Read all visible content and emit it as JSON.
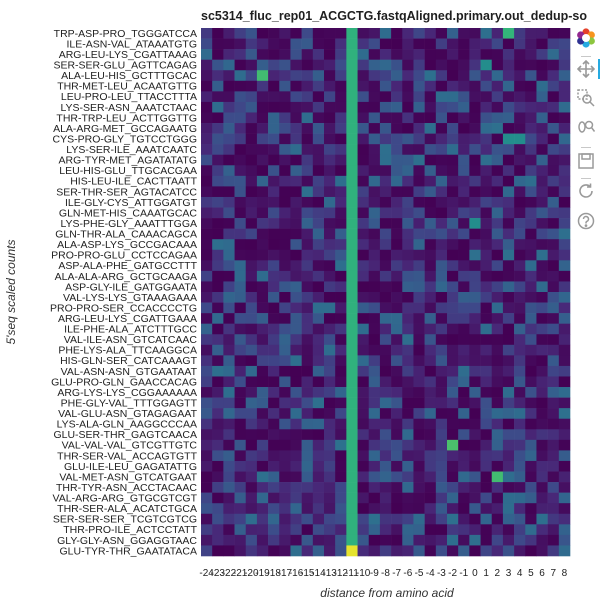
{
  "chart_data": {
    "type": "heatmap",
    "title": "sc5314_fluc_rep01_ACGCTG.fastqAligned.primary.out_dedup-so",
    "xlabel": "distance from amino acid",
    "ylabel": "5'seq scaled counts",
    "x_ticks": [
      "-24",
      "-23",
      "-22",
      "-21",
      "-20",
      "-19",
      "-18",
      "-17",
      "-16",
      "-15",
      "-14",
      "-13",
      "-12",
      "-11",
      "-10",
      "-9",
      "-8",
      "-7",
      "-6",
      "-5",
      "-4",
      "-3",
      "-2",
      "-1",
      "0",
      "1",
      "2",
      "3",
      "4",
      "5",
      "6",
      "7",
      "8"
    ],
    "rows": [
      "TRP-ASP-PRO_TGGGATCCA",
      "ILE-ASN-VAL_ATAAATGTG",
      "ARG-LEU-LYS_CGATTAAAG",
      "SER-SER-GLU_AGTTCAGAG",
      "ALA-LEU-HIS_GCTTTGCAC",
      "THR-MET-LEU_ACAATGTTG",
      "LEU-PRO-LEU_TTACCTTTA",
      "LYS-SER-ASN_AAATCTAAC",
      "THR-TRP-LEU_ACTTGGTTG",
      "ALA-ARG-MET_GCCAGAATG",
      "CYS-PRO-GLY_TGTCCTGGG",
      "LYS-SER-ILE_AAATCAATC",
      "ARG-TYR-MET_AGATATATG",
      "LEU-HIS-GLU_TTGCACGAA",
      "HIS-LEU-ILE_CACTTAATT",
      "SER-THR-SER_AGTACATCC",
      "ILE-GLY-CYS_ATTGGATGT",
      "GLN-MET-HIS_CAAATGCAC",
      "LYS-PHE-GLY_AAATTTGGA",
      "GLN-THR-ALA_CAAACAGCA",
      "ALA-ASP-LYS_GCCGACAAA",
      "PRO-PRO-GLU_CCTCCAGAA",
      "ASP-ALA-PHE_GATGCCTTT",
      "ALA-ALA-ARG_GCTGCAAGA",
      "ASP-GLY-ILE_GATGGAATA",
      "VAL-LYS-LYS_GTAAAGAAA",
      "PRO-PRO-SER_CCACCCCTG",
      "ARG-LEU-LYS_CGATTGAAA",
      "ILE-PHE-ALA_ATCTTTGCC",
      "VAL-ILE-ASN_GTCATCAAC",
      "PHE-LYS-ALA_TTCAAGGCA",
      "HIS-GLN-SER_CATCAAAGT",
      "VAL-ASN-ASN_GTGAATAAT",
      "GLU-PRO-GLN_GAACCACAG",
      "ARG-LYS-LYS_CGGAAAAAA",
      "PHE-GLY-VAL_TTTGGAGTT",
      "VAL-GLU-ASN_GTAGAGAAT",
      "LYS-ALA-GLN_AAGGCCCAA",
      "GLU-SER-THR_GAGTCAACA",
      "VAL-VAL-VAL_GTCGTTGTC",
      "THR-SER-VAL_ACCAGTGTT",
      "GLU-ILE-LEU_GAGATATTG",
      "VAL-MET-ASN_GTCATGAAT",
      "THR-TYR-ASN_ACCTACAAC",
      "VAL-ARG-ARG_GTGCGTCGT",
      "THR-SER-ALA_ACATCTGCA",
      "SER-SER-SER_TCGTCGTCG",
      "THR-PRO-ILE_ACTCCTATT",
      "GLY-GLY-ASN_GGAGGTAAC",
      "GLU-TYR-THR_GAATATACA"
    ],
    "hot_column_tick": "-11",
    "hot_column_values": {
      "default": 0.72,
      "last_row": 0.98
    },
    "highlights": [
      {
        "row": "TRP-ASP-PRO_TGGGATCCA",
        "x": "3",
        "value": 0.74
      },
      {
        "row": "ALA-LEU-HIS_GCTTTGCAC",
        "x": "-19",
        "value": 0.78
      },
      {
        "row": "CYS-PRO-GLY_TGTCCTGGG",
        "x": "3",
        "value": 0.55
      },
      {
        "row": "CYS-PRO-GLY_TGTCCTGGG",
        "x": "4",
        "value": 0.55
      },
      {
        "row": "LYS-PHE-GLY_AAATTTGGA",
        "x": "0",
        "value": 0.55
      },
      {
        "row": "VAL-VAL-VAL_GTCGTTGTC",
        "x": "-2",
        "value": 0.8
      },
      {
        "row": "VAL-MET-ASN_GTCATGAAT",
        "x": "2",
        "value": 0.78
      },
      {
        "row": "SER-SER-GLU_AGTTCAGAG",
        "x": "1",
        "value": 0.55
      }
    ],
    "background_value_range": [
      0.0,
      0.42
    ],
    "colormap": "viridis",
    "colors": {
      "viridis_low": "#440154",
      "viridis_mid": "#21908d",
      "viridis_high": "#fde725"
    }
  },
  "toolbar": {
    "icons": [
      "bokeh-logo-icon",
      "pan-icon",
      "box-zoom-icon",
      "wheel-zoom-icon",
      "save-icon",
      "reset-icon",
      "help-icon"
    ],
    "accent": "#26aae1"
  }
}
